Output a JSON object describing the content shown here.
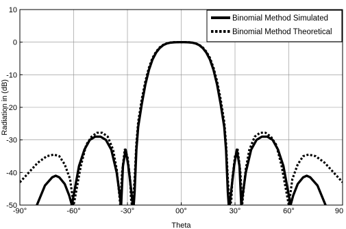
{
  "chart_data": {
    "type": "line",
    "title": "",
    "xlabel": "Theta",
    "ylabel": "Radiation in (dB)",
    "xlim": [
      -90,
      90
    ],
    "ylim": [
      -50,
      10
    ],
    "xticks": [
      -90,
      -60,
      -30,
      0,
      30,
      60,
      90
    ],
    "xtick_labels": [
      "-90°",
      "-60°",
      "-30°",
      "00°",
      "30°",
      "60°",
      "90"
    ],
    "yticks": [
      10,
      0,
      -10,
      -20,
      -30,
      -40,
      -50
    ],
    "ytick_labels": [
      "10",
      "0",
      "-10",
      "-20",
      "-30",
      "-40",
      "-50"
    ],
    "grid": true,
    "legend_position": "top-right",
    "series": [
      {
        "name": "Binomial Method Simulated",
        "style": "solid",
        "color": "#000000",
        "x": [
          -80.5,
          -76,
          -72,
          -70,
          -68,
          -65,
          -62.5,
          -61.5,
          -61,
          -57,
          -54,
          -51,
          -48,
          -45,
          -42,
          -39,
          -36,
          -34,
          -33.5,
          -32.5,
          -31,
          -29.5,
          -28,
          -27,
          -26.5,
          -26,
          -25,
          -24,
          -22,
          -20,
          -18,
          -16,
          -14,
          -12,
          -10,
          -8,
          -6,
          -4,
          -2,
          0,
          2,
          4,
          6,
          8,
          10,
          12,
          14,
          16,
          18,
          20,
          22,
          24,
          25,
          26,
          26.5,
          27,
          28,
          29.5,
          31,
          32.5,
          33.5,
          34,
          36,
          39,
          42,
          45,
          48,
          51,
          54,
          57,
          61,
          61.5,
          62.5,
          65,
          68,
          70,
          72,
          76,
          80.5
        ],
        "y": [
          -50,
          -44,
          -41.5,
          -41,
          -41.5,
          -43.5,
          -47,
          -49,
          -50,
          -38,
          -33,
          -30,
          -29,
          -29,
          -30,
          -33,
          -40,
          -48,
          -50,
          -38,
          -33,
          -38,
          -45,
          -50,
          -50,
          -46,
          -33,
          -26,
          -19,
          -13,
          -8.5,
          -5.3,
          -3.2,
          -1.8,
          -0.9,
          -0.4,
          -0.15,
          -0.05,
          0,
          0,
          0,
          -0.05,
          -0.15,
          -0.4,
          -0.9,
          -1.8,
          -3.2,
          -5.3,
          -8.5,
          -13,
          -19,
          -26,
          -33,
          -46,
          -50,
          -50,
          -45,
          -38,
          -33,
          -38,
          -50,
          -48,
          -40,
          -33,
          -30,
          -29,
          -29,
          -30,
          -33,
          -38,
          -50,
          -49,
          -47,
          -43.5,
          -41.5,
          -41,
          -41.5,
          -44,
          -50
        ]
      },
      {
        "name": "Binomial Method Theoretical",
        "style": "dotted",
        "color": "#000000",
        "x": [
          -90,
          -85,
          -80,
          -75,
          -71,
          -68,
          -65,
          -62,
          -60.5,
          -60,
          -56,
          -53,
          -50,
          -47,
          -44,
          -41,
          -38,
          -36,
          -34.5,
          -34,
          -33,
          -31.5,
          -30,
          -28.5,
          -28,
          -27.5,
          -27,
          -26,
          -25,
          -24,
          -22,
          -20,
          -18,
          -16,
          -14,
          -12,
          -10,
          -8,
          -6,
          -4,
          -2,
          0,
          2,
          4,
          6,
          8,
          10,
          12,
          14,
          16,
          18,
          20,
          22,
          24,
          25,
          26,
          27,
          27.5,
          28,
          28.5,
          30,
          31.5,
          33,
          34,
          34.5,
          36,
          38,
          41,
          44,
          47,
          50,
          53,
          56,
          60,
          60.5,
          62,
          65,
          68,
          71,
          75,
          80,
          85,
          90
        ],
        "y": [
          -43,
          -40,
          -37,
          -35,
          -34.5,
          -35,
          -37.5,
          -42,
          -48,
          -50,
          -38,
          -31.5,
          -29,
          -27.8,
          -27.8,
          -29,
          -33,
          -39,
          -47,
          -50,
          -40,
          -33,
          -35,
          -42,
          -48,
          -50,
          -50,
          -42,
          -31,
          -24.5,
          -17.5,
          -12,
          -7.8,
          -4.8,
          -2.9,
          -1.6,
          -0.8,
          -0.35,
          -0.1,
          0,
          0,
          0,
          0,
          0,
          -0.1,
          -0.35,
          -0.8,
          -1.6,
          -2.9,
          -4.8,
          -7.8,
          -12,
          -17.5,
          -24.5,
          -31,
          -42,
          -50,
          -50,
          -48,
          -42,
          -35,
          -33,
          -40,
          -50,
          -47,
          -39,
          -33,
          -29,
          -27.8,
          -27.8,
          -29,
          -31.5,
          -38,
          -50,
          -48,
          -42,
          -37.5,
          -35,
          -34.5,
          -35,
          -37,
          -40,
          -43
        ]
      }
    ]
  }
}
